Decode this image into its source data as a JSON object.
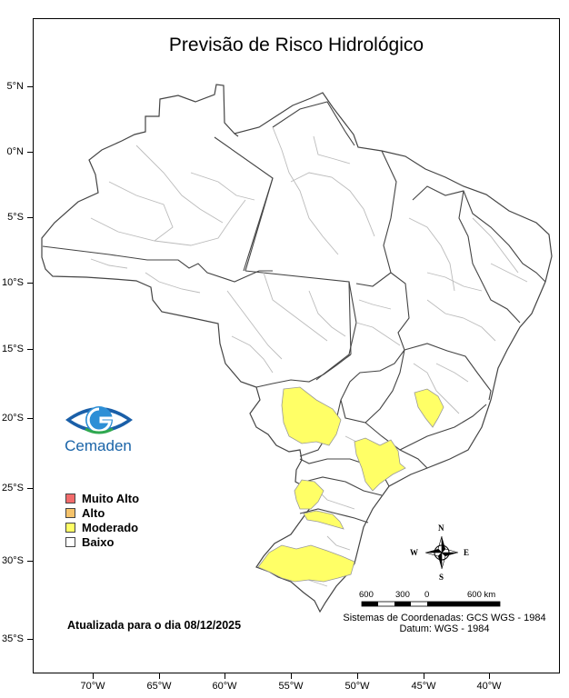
{
  "title": "Previsão de Risco Hidrológico",
  "lat_labels": [
    "5°N",
    "0°N",
    "5°S",
    "10°S",
    "15°S",
    "20°S",
    "25°S",
    "30°S",
    "35°S"
  ],
  "lon_labels": [
    "70°W",
    "65°W",
    "60°W",
    "55°W",
    "50°W",
    "45°W",
    "40°W"
  ],
  "logo_text": "Cemaden",
  "legend": [
    {
      "label": "Muito Alto",
      "color": "#f26b6b"
    },
    {
      "label": "Alto",
      "color": "#f5c36b"
    },
    {
      "label": "Moderado",
      "color": "#ffff66"
    },
    {
      "label": "Baixo",
      "color": "#ffffff"
    }
  ],
  "updated_text": "Atualizada para o dia 08/12/2025",
  "scale": {
    "labels": [
      "600",
      "300",
      "0",
      "600 km"
    ]
  },
  "compass": {
    "n": "N",
    "s": "S",
    "e": "E",
    "w": "W"
  },
  "crs_line1": "Sistemas de Coordenadas: GCS WGS - 1984",
  "crs_line2": "Datum: WGS - 1984",
  "colors": {
    "moderate": "#ffff66",
    "border": "#444444",
    "sub_border": "#bbbbbb"
  }
}
